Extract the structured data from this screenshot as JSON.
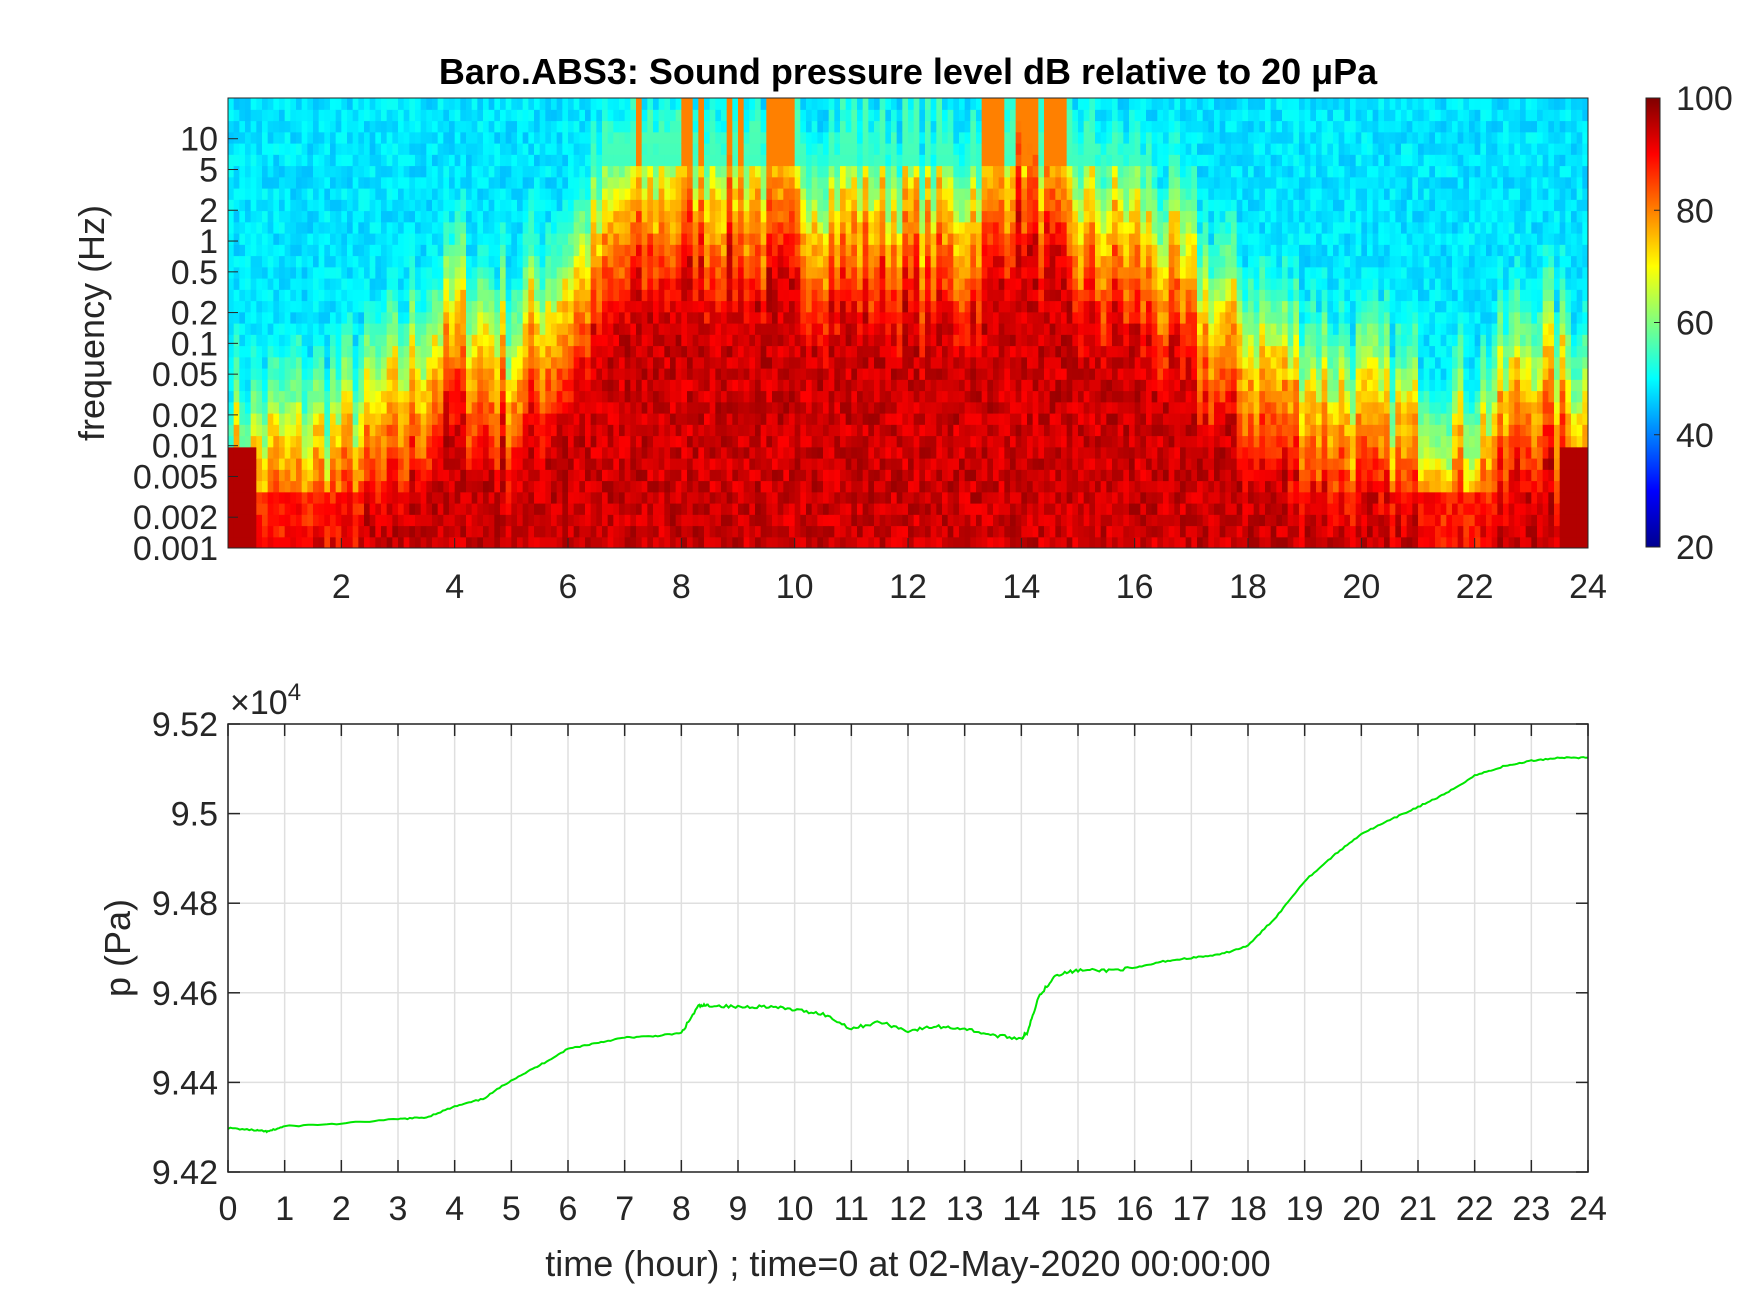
{
  "colors": {
    "line": "#00e600",
    "axes": "#262626",
    "grid": "#dfdfdf",
    "colormap": "jet"
  },
  "chart_data": [
    {
      "type": "heatmap",
      "title": "Baro.ABS3: Sound pressure level dB relative to 20 μPa",
      "xlabel": "",
      "ylabel": "frequency (Hz)",
      "y_scale": "log",
      "xlim": [
        0,
        24
      ],
      "ylim": [
        0.001,
        25
      ],
      "x_ticks": [
        "2",
        "4",
        "6",
        "8",
        "10",
        "12",
        "14",
        "16",
        "18",
        "20",
        "22",
        "24"
      ],
      "y_ticks": [
        "0.001",
        "0.002",
        "0.005",
        "0.01",
        "0.02",
        "0.05",
        "0.1",
        "0.2",
        "0.5",
        "1",
        "2",
        "5",
        "10"
      ],
      "colorbar": {
        "clim": [
          20,
          100
        ],
        "ticks": [
          "20",
          "40",
          "60",
          "80",
          "100"
        ]
      },
      "activity_hours": [
        0,
        1,
        2,
        3,
        4,
        5,
        6,
        7,
        8,
        9,
        10,
        11,
        12,
        13,
        14,
        15,
        16,
        17,
        18,
        19,
        20,
        21,
        22,
        23,
        24
      ],
      "upper_extent_log10_hz": [
        -2.0,
        -1.9,
        -1.8,
        -1.4,
        -0.6,
        -1.0,
        -0.3,
        0.5,
        0.8,
        0.8,
        0.6,
        0.5,
        0.5,
        0.4,
        1.3,
        0.4,
        0.3,
        -0.3,
        -0.9,
        -1.2,
        -1.5,
        -1.7,
        -1.9,
        -1.0,
        -1.5
      ],
      "annotations": []
    },
    {
      "type": "line",
      "xlabel": "time (hour) ; time=0 at 02-May-2020 00:00:00",
      "ylabel": "p (Pa)",
      "y_exponent_label": "×10",
      "y_exponent_power": "4",
      "xlim": [
        0,
        24
      ],
      "ylim": [
        94200,
        95200
      ],
      "grid": true,
      "x_ticks": [
        "0",
        "1",
        "2",
        "3",
        "4",
        "5",
        "6",
        "7",
        "8",
        "9",
        "10",
        "11",
        "12",
        "13",
        "14",
        "15",
        "16",
        "17",
        "18",
        "19",
        "20",
        "21",
        "22",
        "23",
        "24"
      ],
      "y_ticks": [
        "9.42",
        "9.44",
        "9.46",
        "9.48",
        "9.5",
        "9.52"
      ],
      "y_tick_values": [
        94200,
        94400,
        94600,
        94800,
        95000,
        95200
      ],
      "series": [
        {
          "x": [
            0,
            0.5,
            0.7,
            1,
            2,
            3,
            3.5,
            4,
            4.5,
            5,
            5.5,
            6,
            6.5,
            7,
            7.5,
            8,
            8.3,
            8.5,
            9,
            9.5,
            10,
            10.5,
            11,
            11.5,
            12,
            12.5,
            13,
            13.5,
            14,
            14.1,
            14.3,
            14.6,
            15,
            15.5,
            16,
            16.5,
            17,
            17.5,
            18,
            18.5,
            19,
            19.5,
            20,
            20.5,
            21,
            21.5,
            22,
            22.5,
            23,
            23.5,
            24
          ],
          "y": [
            94298,
            94293,
            94290,
            94302,
            94308,
            94318,
            94322,
            94346,
            94363,
            94405,
            94438,
            94475,
            94488,
            94500,
            94503,
            94510,
            94570,
            94572,
            94568,
            94570,
            94562,
            94553,
            94520,
            94535,
            94515,
            94525,
            94520,
            94505,
            94498,
            94510,
            94590,
            94640,
            94650,
            94650,
            94655,
            94670,
            94678,
            94685,
            94705,
            94770,
            94850,
            94905,
            94955,
            94985,
            95015,
            95045,
            95085,
            95105,
            95118,
            95125,
            95125
          ]
        }
      ]
    }
  ]
}
